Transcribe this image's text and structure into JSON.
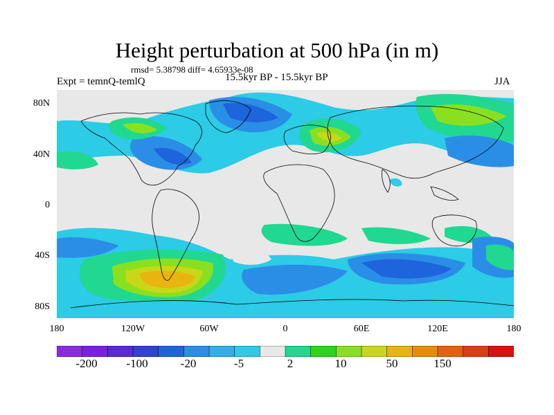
{
  "title": "Height perturbation at 500 hPa (in m)",
  "stats": "rmsd= 5.38798 diff= 4.65933e-08",
  "expt": "Expt = temnQ-temlQ",
  "period": "15.5kyr BP - 15.5kyr BP",
  "season": "JJA",
  "lat_labels": [
    "80N",
    "40N",
    "0",
    "40S",
    "80S"
  ],
  "lon_labels": [
    "180",
    "120W",
    "60W",
    "0",
    "60E",
    "120E",
    "180"
  ],
  "colorbar": {
    "colors": [
      "#8a2be2",
      "#7a1fe6",
      "#5a28d8",
      "#3040d8",
      "#1e64dc",
      "#2a8ee6",
      "#30b0e8",
      "#2ccbe6",
      "#e8e8e8",
      "#20d890",
      "#28d818",
      "#8ae020",
      "#c8d818",
      "#e8b410",
      "#e88c08",
      "#e8600c",
      "#e03a18",
      "#d81010"
    ],
    "labels": [
      "-200",
      "-100",
      "-20",
      "-5",
      "2",
      "10",
      "50",
      "150"
    ]
  },
  "map_colors": {
    "background": "#e8e8e8",
    "light_blue": "#2ccbe6",
    "blue": "#2a8ee6",
    "dark_blue": "#1e64dc",
    "green": "#20d890",
    "lime": "#8ae020",
    "yellow": "#c8d818",
    "orange": "#e8b410",
    "coast": "#000000"
  }
}
